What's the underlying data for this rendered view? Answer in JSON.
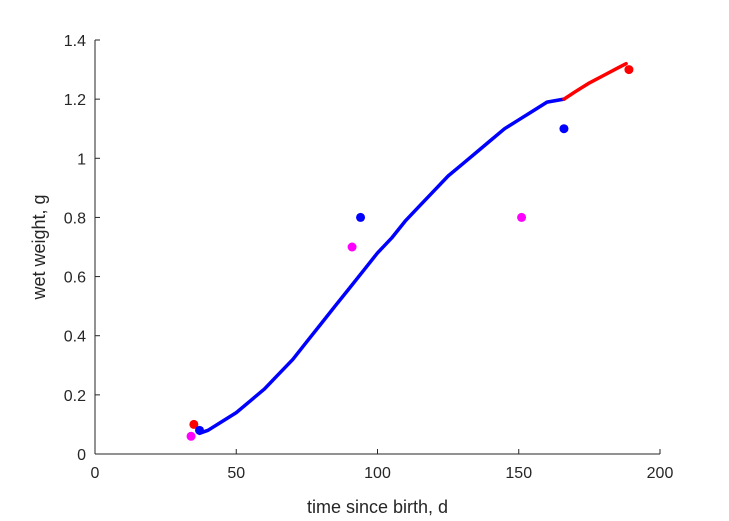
{
  "chart_data": {
    "type": "scatter",
    "xlabel": "time since birth, d",
    "ylabel": "wet weight, g",
    "xlim": [
      0,
      200
    ],
    "ylim": [
      0,
      1.4
    ],
    "xticks": [
      0,
      50,
      100,
      150,
      200
    ],
    "yticks": [
      0,
      0.2,
      0.4,
      0.6,
      0.8,
      1,
      1.2,
      1.4
    ],
    "xtick_labels": [
      "0",
      "50",
      "100",
      "150",
      "200"
    ],
    "ytick_labels": [
      "0",
      "0.2",
      "0.4",
      "0.6",
      "0.8",
      "1",
      "1.2",
      "1.4"
    ],
    "grid": false,
    "points": [
      {
        "x": 35,
        "y": 0.1,
        "color": "#ff0000"
      },
      {
        "x": 189,
        "y": 1.3,
        "color": "#ff0000"
      },
      {
        "x": 37,
        "y": 0.08,
        "color": "#0000ff"
      },
      {
        "x": 94,
        "y": 0.8,
        "color": "#0000ff"
      },
      {
        "x": 166,
        "y": 1.1,
        "color": "#0000ff"
      },
      {
        "x": 34,
        "y": 0.06,
        "color": "#ff00ff"
      },
      {
        "x": 91,
        "y": 0.7,
        "color": "#ff00ff"
      },
      {
        "x": 151,
        "y": 0.8,
        "color": "#ff00ff"
      }
    ],
    "curves": [
      {
        "color": "#0000ff",
        "x": [
          37,
          40,
          45,
          50,
          55,
          60,
          65,
          70,
          75,
          80,
          85,
          90,
          95,
          100,
          105,
          110,
          115,
          120,
          125,
          130,
          135,
          140,
          145,
          150,
          155,
          160,
          166
        ],
        "y": [
          0.07,
          0.08,
          0.11,
          0.14,
          0.18,
          0.22,
          0.27,
          0.32,
          0.38,
          0.44,
          0.5,
          0.56,
          0.62,
          0.68,
          0.73,
          0.79,
          0.84,
          0.89,
          0.94,
          0.98,
          1.02,
          1.06,
          1.1,
          1.13,
          1.16,
          1.19,
          1.2
        ]
      },
      {
        "color": "#ff0000",
        "x": [
          166,
          170,
          175,
          180,
          185,
          188
        ],
        "y": [
          1.2,
          1.225,
          1.255,
          1.28,
          1.305,
          1.32
        ]
      }
    ]
  }
}
